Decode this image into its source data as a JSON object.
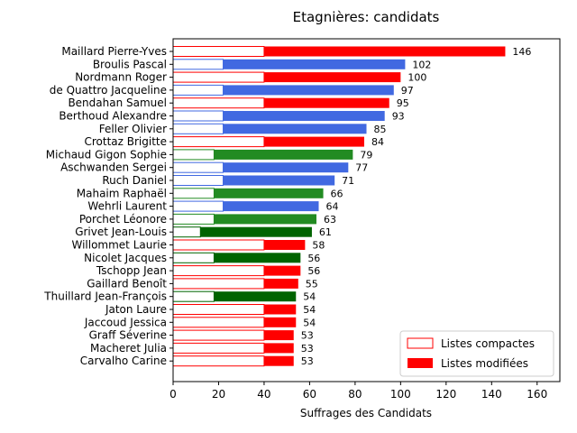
{
  "chart_data": {
    "type": "bar",
    "orientation": "horizontal",
    "title": "Etagnières: candidats",
    "xlabel": "Suffrages des Candidats",
    "ylabel": "",
    "xlim": [
      0,
      170
    ],
    "xticks": [
      0,
      20,
      40,
      60,
      80,
      100,
      120,
      140,
      160
    ],
    "legend": {
      "placement": "lower-right",
      "entries": [
        {
          "label": "Listes compactes",
          "style": "outline",
          "color": "#ff0000"
        },
        {
          "label": "Listes modifiées",
          "style": "filled",
          "color": "#ff0000"
        }
      ]
    },
    "party_colors": {
      "red": "#ff0000",
      "blue": "#4169e1",
      "green": "#228b22",
      "darkgreen": "#006400"
    },
    "candidates": [
      {
        "name": "Maillard Pierre-Yves",
        "total": 146,
        "compact": 40,
        "color": "red"
      },
      {
        "name": "Broulis Pascal",
        "total": 102,
        "compact": 22,
        "color": "blue"
      },
      {
        "name": "Nordmann Roger",
        "total": 100,
        "compact": 40,
        "color": "red"
      },
      {
        "name": "de Quattro Jacqueline",
        "total": 97,
        "compact": 22,
        "color": "blue"
      },
      {
        "name": "Bendahan Samuel",
        "total": 95,
        "compact": 40,
        "color": "red"
      },
      {
        "name": "Berthoud Alexandre",
        "total": 93,
        "compact": 22,
        "color": "blue"
      },
      {
        "name": "Feller Olivier",
        "total": 85,
        "compact": 22,
        "color": "blue"
      },
      {
        "name": "Crottaz Brigitte",
        "total": 84,
        "compact": 40,
        "color": "red"
      },
      {
        "name": "Michaud Gigon Sophie",
        "total": 79,
        "compact": 18,
        "color": "green"
      },
      {
        "name": "Aschwanden Sergei",
        "total": 77,
        "compact": 22,
        "color": "blue"
      },
      {
        "name": "Ruch Daniel",
        "total": 71,
        "compact": 22,
        "color": "blue"
      },
      {
        "name": "Mahaim Raphaël",
        "total": 66,
        "compact": 18,
        "color": "green"
      },
      {
        "name": "Wehrli Laurent",
        "total": 64,
        "compact": 22,
        "color": "blue"
      },
      {
        "name": "Porchet Léonore",
        "total": 63,
        "compact": 18,
        "color": "green"
      },
      {
        "name": "Grivet Jean-Louis",
        "total": 61,
        "compact": 12,
        "color": "darkgreen"
      },
      {
        "name": "Willommet Laurie",
        "total": 58,
        "compact": 40,
        "color": "red"
      },
      {
        "name": "Nicolet Jacques",
        "total": 56,
        "compact": 18,
        "color": "darkgreen"
      },
      {
        "name": "Tschopp Jean",
        "total": 56,
        "compact": 40,
        "color": "red"
      },
      {
        "name": "Gaillard Benoît",
        "total": 55,
        "compact": 40,
        "color": "red"
      },
      {
        "name": "Thuillard Jean-François",
        "total": 54,
        "compact": 18,
        "color": "darkgreen"
      },
      {
        "name": "Jaton Laure",
        "total": 54,
        "compact": 40,
        "color": "red"
      },
      {
        "name": "Jaccoud Jessica",
        "total": 54,
        "compact": 40,
        "color": "red"
      },
      {
        "name": "Graff Séverine",
        "total": 53,
        "compact": 40,
        "color": "red"
      },
      {
        "name": "Macheret Julia",
        "total": 53,
        "compact": 40,
        "color": "red"
      },
      {
        "name": "Carvalho Carine",
        "total": 53,
        "compact": 40,
        "color": "red"
      }
    ]
  }
}
